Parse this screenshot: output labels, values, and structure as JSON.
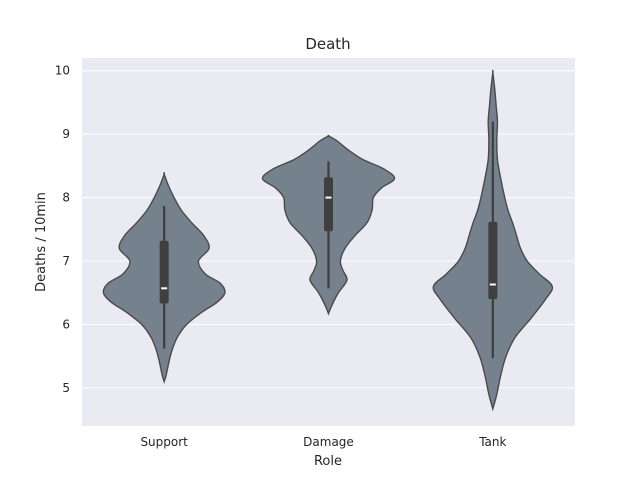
{
  "chart_data": {
    "type": "violin",
    "title": "Death",
    "xlabel": "Role",
    "ylabel": "Deaths / 10min",
    "categories": [
      "Support",
      "Damage",
      "Tank"
    ],
    "ylim": [
      4.4,
      10.2
    ],
    "yticks": [
      5,
      6,
      7,
      8,
      9,
      10
    ],
    "grid": true,
    "colors": {
      "background": "#EAEAF2",
      "grid": "#FFFFFF",
      "violin_fill": "#76818E",
      "violin_edge": "#4A4A4A",
      "box": "#3F3F3F",
      "median": "#FFFFFF"
    },
    "violins": [
      {
        "category": "Support",
        "whisker": [
          5.62,
          7.87
        ],
        "q1": 6.33,
        "median": 6.57,
        "q3": 7.32,
        "density": [
          [
            5.1,
            0.0
          ],
          [
            5.2,
            0.03
          ],
          [
            5.4,
            0.07
          ],
          [
            5.6,
            0.12
          ],
          [
            5.8,
            0.2
          ],
          [
            6.0,
            0.34
          ],
          [
            6.2,
            0.58
          ],
          [
            6.35,
            0.8
          ],
          [
            6.5,
            0.92
          ],
          [
            6.65,
            0.85
          ],
          [
            6.8,
            0.62
          ],
          [
            7.0,
            0.52
          ],
          [
            7.2,
            0.68
          ],
          [
            7.4,
            0.6
          ],
          [
            7.6,
            0.42
          ],
          [
            7.8,
            0.26
          ],
          [
            8.0,
            0.15
          ],
          [
            8.2,
            0.06
          ],
          [
            8.37,
            0.0
          ]
        ]
      },
      {
        "category": "Damage",
        "whisker": [
          6.57,
          8.57
        ],
        "q1": 7.47,
        "median": 8.0,
        "q3": 8.32,
        "density": [
          [
            6.17,
            0.0
          ],
          [
            6.3,
            0.05
          ],
          [
            6.5,
            0.15
          ],
          [
            6.7,
            0.28
          ],
          [
            6.85,
            0.22
          ],
          [
            7.0,
            0.18
          ],
          [
            7.2,
            0.25
          ],
          [
            7.4,
            0.4
          ],
          [
            7.6,
            0.58
          ],
          [
            7.8,
            0.66
          ],
          [
            8.0,
            0.68
          ],
          [
            8.15,
            0.8
          ],
          [
            8.3,
            1.0
          ],
          [
            8.45,
            0.84
          ],
          [
            8.6,
            0.52
          ],
          [
            8.75,
            0.3
          ],
          [
            8.9,
            0.12
          ],
          [
            8.97,
            0.0
          ]
        ]
      },
      {
        "category": "Tank",
        "whisker": [
          5.47,
          9.2
        ],
        "q1": 6.4,
        "median": 6.63,
        "q3": 7.62,
        "density": [
          [
            4.67,
            0.0
          ],
          [
            4.9,
            0.06
          ],
          [
            5.2,
            0.12
          ],
          [
            5.5,
            0.2
          ],
          [
            5.8,
            0.34
          ],
          [
            6.1,
            0.58
          ],
          [
            6.4,
            0.8
          ],
          [
            6.6,
            0.9
          ],
          [
            6.8,
            0.7
          ],
          [
            7.0,
            0.52
          ],
          [
            7.2,
            0.42
          ],
          [
            7.4,
            0.36
          ],
          [
            7.6,
            0.3
          ],
          [
            7.8,
            0.23
          ],
          [
            8.0,
            0.18
          ],
          [
            8.3,
            0.12
          ],
          [
            8.6,
            0.07
          ],
          [
            8.9,
            0.06
          ],
          [
            9.2,
            0.07
          ],
          [
            9.45,
            0.05
          ],
          [
            9.7,
            0.03
          ],
          [
            9.97,
            0.0
          ]
        ]
      }
    ]
  }
}
